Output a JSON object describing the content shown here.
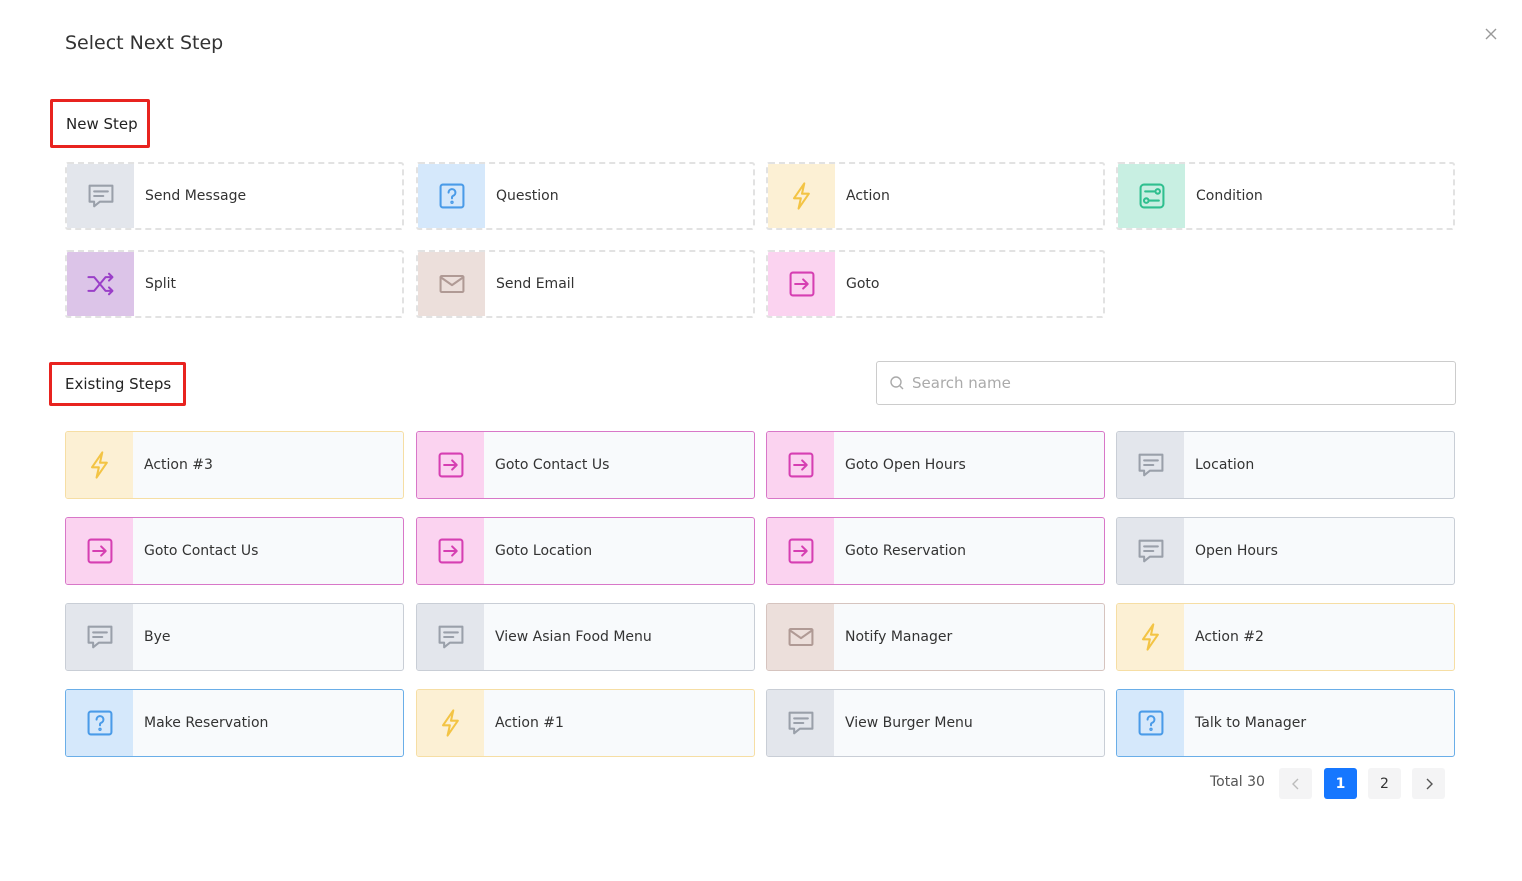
{
  "title": "Select Next Step",
  "new_step": {
    "heading": "New Step",
    "items": [
      "Send Message",
      "Question",
      "Action",
      "Condition",
      "Split",
      "Send Email",
      "Goto"
    ]
  },
  "existing_steps": {
    "heading": "Existing Steps",
    "search_placeholder": "Search name",
    "items": [
      "Action #3",
      "Goto Contact Us",
      "Goto Open Hours",
      "Location",
      "Goto Contact Us",
      "Goto Location",
      "Goto Reservation",
      "Open Hours",
      "Bye",
      "View Asian Food Menu",
      "Notify Manager",
      "Action #2",
      "Make Reservation",
      "Action #1",
      "View Burger Menu",
      "Talk to Manager"
    ]
  },
  "pagination": {
    "total": "Total 30",
    "pages": [
      1,
      2
    ],
    "current": 1
  }
}
